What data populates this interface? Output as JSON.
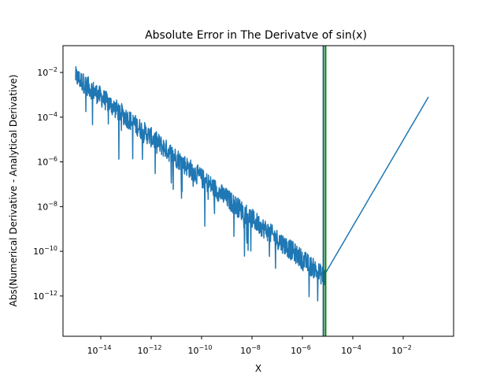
{
  "chart_data": {
    "type": "line",
    "title": "Absolute Error in The Derivatve of sin(x)",
    "xlabel": "X",
    "ylabel": "Abs(Numerical Derivative - Analytical Derivative)",
    "x_scale": "log",
    "y_scale": "log",
    "xlim": [
      3.16e-16,
      1.0
    ],
    "ylim": [
      1.58e-14,
      0.158
    ],
    "x_ticks": [
      {
        "value": 1e-14,
        "base": "10",
        "exp": "−14"
      },
      {
        "value": 1e-12,
        "base": "10",
        "exp": "−12"
      },
      {
        "value": 1e-10,
        "base": "10",
        "exp": "−10"
      },
      {
        "value": 1e-08,
        "base": "10",
        "exp": "−8"
      },
      {
        "value": 1e-06,
        "base": "10",
        "exp": "−6"
      },
      {
        "value": 0.0001,
        "base": "10",
        "exp": "−4"
      },
      {
        "value": 0.01,
        "base": "10",
        "exp": "−2"
      }
    ],
    "y_ticks": [
      {
        "value": 1e-12,
        "base": "10",
        "exp": "−12"
      },
      {
        "value": 1e-10,
        "base": "10",
        "exp": "−10"
      },
      {
        "value": 1e-08,
        "base": "10",
        "exp": "−8"
      },
      {
        "value": 1e-06,
        "base": "10",
        "exp": "−6"
      },
      {
        "value": 0.0001,
        "base": "10",
        "exp": "−4"
      },
      {
        "value": 0.01,
        "base": "10",
        "exp": "−2"
      }
    ],
    "grid": false,
    "series": [
      {
        "color": "#1f77b4",
        "x_range": [
          1e-15,
          0.1
        ],
        "noisy_trend": {
          "x_end": 8e-06,
          "y_at_start": 0.01,
          "y_at_end": 1e-11
        },
        "smooth_trend": {
          "x_start": 8e-06,
          "y_at_start": 1e-11,
          "y_at_end": 0.0008
        }
      }
    ],
    "vlines": [
      {
        "x": 6.8e-06,
        "color": "#1f5f7a"
      },
      {
        "x": 8.3e-06,
        "color": "#008000"
      }
    ]
  }
}
